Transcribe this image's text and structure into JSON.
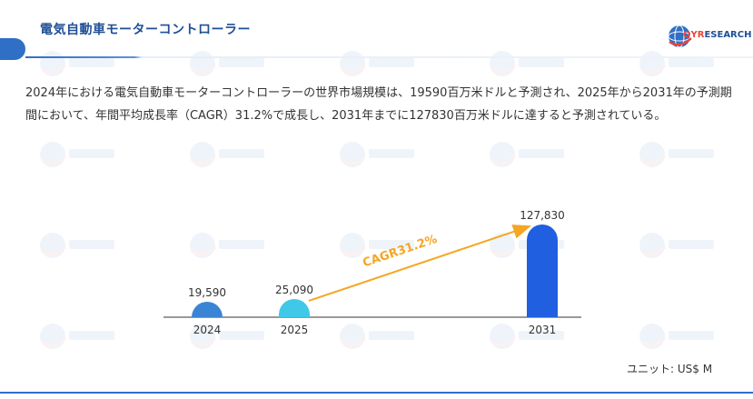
{
  "header": {
    "title": "電気自動車モーターコントローラー",
    "logo_prefix": "QYR",
    "logo_suffix": "ESEARCH"
  },
  "description": "2024年における電気自動車モーターコントローラーの世界市場規模は、19590百万米ドルと予測され、2025年から2031年の予測期間において、年間平均成長率（CAGR）31.2%で成長し、2031年までに127830百万米ドルに達すると予測されている。",
  "chart_data": {
    "type": "bar",
    "categories": [
      "2024",
      "2025",
      "2031"
    ],
    "values": [
      19590,
      25090,
      127830
    ],
    "value_labels": [
      "19,590",
      "25,090",
      "127,830"
    ],
    "colors": [
      "#3a84d6",
      "#40c8e8",
      "#1f5fe0"
    ],
    "annotation": {
      "text": "CAGR31.2%",
      "color": "#f5a623",
      "from": "2025",
      "to": "2031"
    },
    "unit": "ユニット: US$ M"
  }
}
